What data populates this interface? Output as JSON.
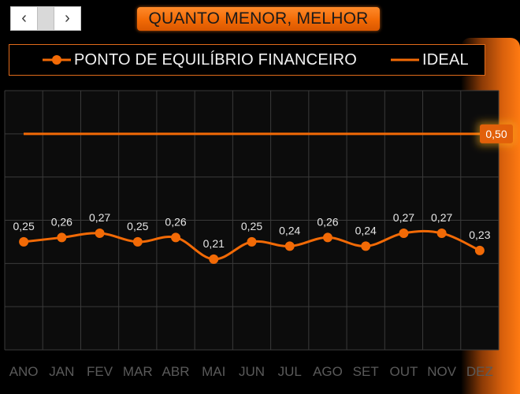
{
  "navigation": {
    "prev_icon": "chevron-left",
    "next_icon": "chevron-right"
  },
  "header": {
    "title": "QUANTO MENOR, MELHOR"
  },
  "colors": {
    "series": "#f26a06",
    "ideal": "#f26a06",
    "grid": "#3a3a3a",
    "accent": "#ff7a12"
  },
  "chart_data": {
    "type": "line",
    "categories": [
      "ANO",
      "JAN",
      "FEV",
      "MAR",
      "ABR",
      "MAI",
      "JUN",
      "JUL",
      "AGO",
      "SET",
      "OUT",
      "NOV",
      "DEZ"
    ],
    "series": [
      {
        "name": "PONTO DE EQUILÍBRIO FINANCEIRO",
        "values": [
          0.25,
          0.26,
          0.27,
          0.25,
          0.26,
          0.21,
          0.25,
          0.24,
          0.26,
          0.24,
          0.27,
          0.27,
          0.23
        ],
        "labels": [
          "0,25",
          "0,26",
          "0,27",
          "0,25",
          "0,26",
          "0,21",
          "0,25",
          "0,24",
          "0,26",
          "0,24",
          "0,27",
          "0,27",
          "0,23"
        ],
        "markers": true
      },
      {
        "name": "IDEAL",
        "values": [
          0.5,
          0.5,
          0.5,
          0.5,
          0.5,
          0.5,
          0.5,
          0.5,
          0.5,
          0.5,
          0.5,
          0.5,
          0.5
        ],
        "end_label": "0,50",
        "markers": false
      }
    ],
    "ylim": [
      0,
      0.6
    ],
    "grid": true,
    "legend": "top",
    "xlabel": "",
    "ylabel": ""
  }
}
